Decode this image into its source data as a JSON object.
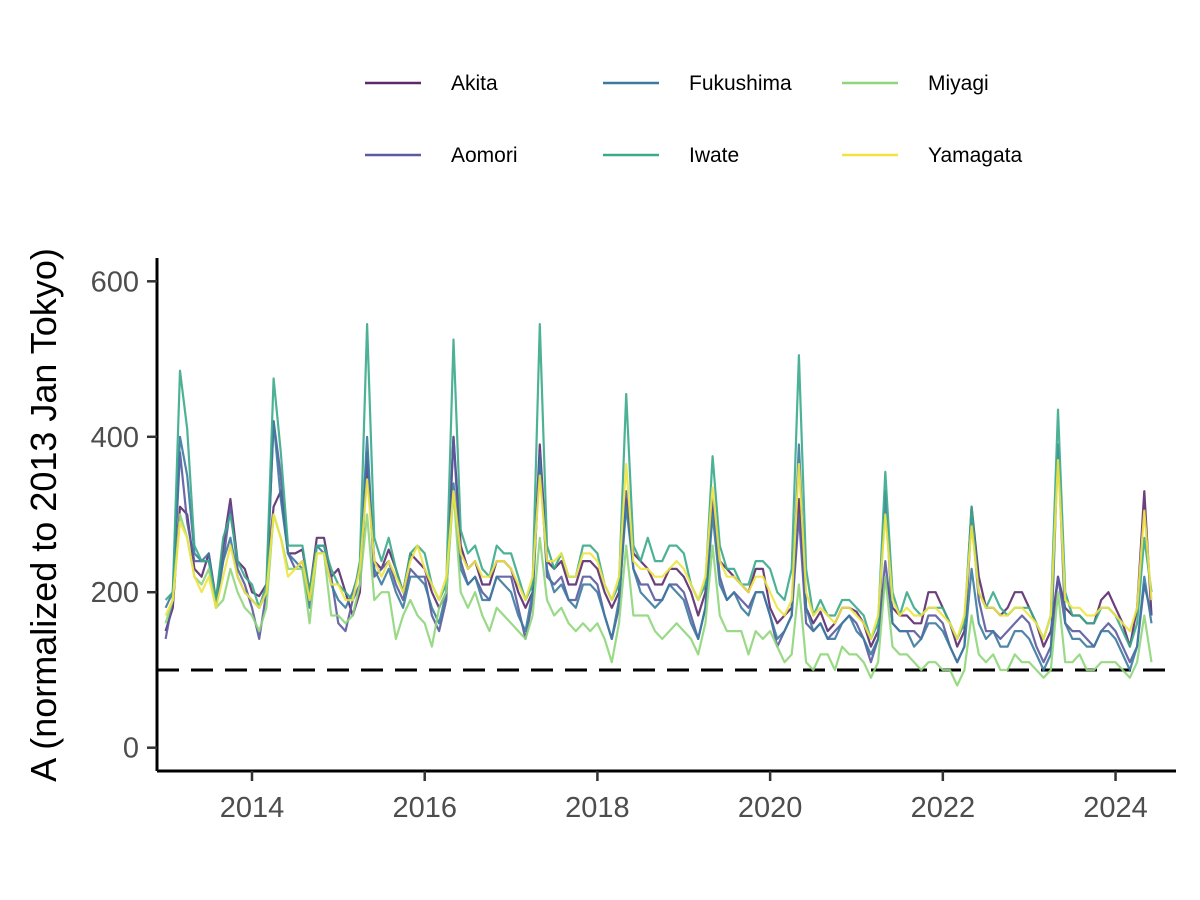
{
  "chart_data": {
    "type": "line",
    "title": "",
    "xlabel": "",
    "ylabel": "A (normalized to 2013 Jan Tokyo)",
    "xlim": [
      2012.9,
      2024.7
    ],
    "ylim": [
      -30,
      630
    ],
    "x_ticks": [
      2014,
      2016,
      2018,
      2020,
      2022,
      2024
    ],
    "y_ticks": [
      0,
      200,
      400,
      600
    ],
    "reference_line": {
      "y": 100,
      "style": "dashed"
    },
    "legend": {
      "position": "top"
    },
    "x_start": 2013.0,
    "x_step": 0.083333,
    "series": [
      {
        "name": "Akita",
        "color": "#5b2a6e",
        "values": [
          150,
          180,
          310,
          300,
          230,
          220,
          250,
          190,
          260,
          320,
          240,
          230,
          200,
          195,
          210,
          310,
          330,
          250,
          250,
          255,
          200,
          270,
          270,
          220,
          230,
          200,
          170,
          200,
          370,
          240,
          230,
          255,
          230,
          200,
          250,
          240,
          230,
          200,
          180,
          200,
          400,
          260,
          230,
          240,
          210,
          210,
          240,
          240,
          230,
          200,
          180,
          200,
          390,
          240,
          230,
          240,
          210,
          210,
          240,
          240,
          230,
          200,
          180,
          200,
          320,
          250,
          240,
          230,
          210,
          210,
          230,
          230,
          220,
          200,
          170,
          200,
          320,
          240,
          230,
          220,
          210,
          200,
          230,
          230,
          180,
          160,
          170,
          180,
          320,
          180,
          160,
          175,
          150,
          160,
          180,
          180,
          175,
          160,
          130,
          150,
          220,
          180,
          170,
          170,
          160,
          160,
          200,
          200,
          180,
          160,
          130,
          150,
          310,
          220,
          180,
          180,
          170,
          180,
          200,
          200,
          180,
          160,
          130,
          150,
          220,
          180,
          170,
          170,
          160,
          160,
          190,
          200,
          180,
          160,
          130,
          180,
          330,
          170
        ]
      },
      {
        "name": "Aomori",
        "color": "#5a5a9e",
        "values": [
          140,
          190,
          380,
          290,
          240,
          240,
          240,
          190,
          240,
          310,
          230,
          210,
          180,
          140,
          200,
          420,
          350,
          250,
          230,
          240,
          190,
          260,
          260,
          220,
          160,
          150,
          190,
          210,
          380,
          220,
          230,
          240,
          210,
          190,
          230,
          220,
          220,
          170,
          150,
          190,
          400,
          240,
          210,
          220,
          200,
          190,
          220,
          220,
          220,
          180,
          140,
          190,
          380,
          220,
          210,
          220,
          190,
          190,
          220,
          220,
          210,
          170,
          140,
          180,
          330,
          230,
          210,
          210,
          190,
          190,
          210,
          210,
          200,
          170,
          140,
          180,
          320,
          220,
          190,
          200,
          190,
          180,
          200,
          200,
          170,
          130,
          150,
          170,
          300,
          160,
          150,
          160,
          140,
          150,
          160,
          170,
          160,
          140,
          110,
          140,
          240,
          160,
          150,
          150,
          150,
          140,
          170,
          170,
          160,
          130,
          110,
          130,
          300,
          190,
          150,
          150,
          140,
          150,
          160,
          170,
          160,
          130,
          110,
          130,
          220,
          160,
          150,
          150,
          140,
          130,
          150,
          160,
          150,
          130,
          110,
          130,
          210,
          170
        ]
      },
      {
        "name": "Fukushima",
        "color": "#3b7a9e",
        "values": [
          180,
          200,
          400,
          350,
          250,
          240,
          250,
          180,
          240,
          270,
          220,
          200,
          190,
          180,
          200,
          420,
          320,
          250,
          240,
          230,
          180,
          260,
          250,
          210,
          190,
          180,
          200,
          230,
          400,
          230,
          210,
          230,
          200,
          180,
          220,
          220,
          210,
          180,
          160,
          200,
          340,
          230,
          210,
          220,
          190,
          190,
          220,
          210,
          200,
          170,
          150,
          200,
          370,
          230,
          200,
          210,
          190,
          180,
          210,
          210,
          200,
          170,
          140,
          190,
          310,
          230,
          200,
          190,
          180,
          190,
          210,
          200,
          190,
          160,
          140,
          180,
          300,
          210,
          190,
          200,
          180,
          170,
          200,
          200,
          170,
          140,
          150,
          170,
          390,
          180,
          150,
          160,
          140,
          140,
          160,
          170,
          150,
          140,
          120,
          140,
          330,
          160,
          150,
          150,
          130,
          140,
          160,
          160,
          150,
          130,
          110,
          130,
          230,
          160,
          140,
          150,
          130,
          130,
          150,
          150,
          140,
          120,
          100,
          120,
          390,
          160,
          140,
          140,
          130,
          130,
          150,
          150,
          140,
          120,
          100,
          130,
          220,
          160
        ]
      },
      {
        "name": "Iwate",
        "color": "#3aaa8a",
        "values": [
          190,
          200,
          485,
          410,
          260,
          240,
          240,
          190,
          270,
          300,
          240,
          220,
          210,
          180,
          210,
          475,
          380,
          260,
          260,
          260,
          200,
          260,
          260,
          230,
          210,
          200,
          190,
          240,
          545,
          270,
          240,
          270,
          230,
          200,
          250,
          260,
          250,
          210,
          190,
          210,
          525,
          280,
          250,
          260,
          230,
          220,
          260,
          250,
          250,
          220,
          190,
          210,
          545,
          260,
          230,
          250,
          220,
          220,
          260,
          260,
          250,
          210,
          190,
          210,
          455,
          260,
          240,
          270,
          240,
          240,
          260,
          260,
          250,
          210,
          190,
          210,
          375,
          260,
          230,
          230,
          210,
          210,
          240,
          240,
          230,
          200,
          190,
          230,
          505,
          230,
          170,
          190,
          170,
          170,
          190,
          190,
          180,
          170,
          140,
          160,
          355,
          200,
          170,
          200,
          180,
          170,
          180,
          180,
          180,
          160,
          140,
          160,
          310,
          200,
          180,
          200,
          180,
          170,
          180,
          180,
          180,
          160,
          140,
          170,
          435,
          200,
          170,
          170,
          160,
          160,
          180,
          180,
          170,
          150,
          130,
          160,
          270,
          200
        ]
      },
      {
        "name": "Miyagi",
        "color": "#8fd67a",
        "values": [
          160,
          190,
          300,
          270,
          220,
          210,
          230,
          180,
          190,
          230,
          200,
          180,
          170,
          150,
          180,
          300,
          270,
          230,
          230,
          230,
          160,
          250,
          250,
          170,
          170,
          160,
          170,
          210,
          300,
          190,
          200,
          200,
          140,
          170,
          190,
          170,
          160,
          130,
          180,
          200,
          330,
          200,
          180,
          200,
          170,
          150,
          180,
          170,
          160,
          150,
          140,
          170,
          270,
          190,
          170,
          180,
          160,
          150,
          160,
          150,
          160,
          140,
          110,
          160,
          260,
          170,
          170,
          170,
          150,
          140,
          150,
          160,
          150,
          140,
          120,
          160,
          260,
          170,
          150,
          150,
          150,
          120,
          150,
          140,
          150,
          130,
          110,
          120,
          210,
          110,
          100,
          120,
          120,
          100,
          130,
          120,
          120,
          110,
          90,
          110,
          220,
          130,
          120,
          120,
          110,
          100,
          110,
          110,
          100,
          100,
          80,
          100,
          170,
          120,
          110,
          120,
          100,
          100,
          120,
          110,
          110,
          100,
          90,
          100,
          200,
          110,
          110,
          120,
          100,
          100,
          110,
          110,
          110,
          100,
          90,
          110,
          170,
          110
        ]
      },
      {
        "name": "Yamagata",
        "color": "#f0e442",
        "values": [
          170,
          190,
          290,
          270,
          220,
          200,
          220,
          180,
          220,
          260,
          220,
          200,
          190,
          180,
          200,
          300,
          270,
          220,
          230,
          240,
          190,
          250,
          250,
          210,
          210,
          190,
          190,
          230,
          345,
          240,
          220,
          240,
          220,
          200,
          240,
          260,
          230,
          210,
          190,
          220,
          330,
          250,
          230,
          240,
          220,
          220,
          240,
          240,
          230,
          210,
          190,
          220,
          350,
          240,
          240,
          250,
          220,
          220,
          250,
          250,
          240,
          210,
          190,
          220,
          365,
          240,
          230,
          230,
          220,
          220,
          230,
          240,
          230,
          210,
          190,
          220,
          335,
          240,
          220,
          220,
          210,
          200,
          220,
          220,
          200,
          180,
          170,
          190,
          365,
          200,
          170,
          180,
          170,
          160,
          180,
          180,
          170,
          160,
          140,
          170,
          300,
          190,
          170,
          180,
          170,
          170,
          180,
          180,
          170,
          160,
          140,
          170,
          285,
          200,
          180,
          180,
          170,
          170,
          180,
          180,
          170,
          160,
          140,
          170,
          370,
          190,
          180,
          180,
          170,
          170,
          180,
          180,
          170,
          160,
          150,
          180,
          305,
          190
        ]
      }
    ]
  }
}
